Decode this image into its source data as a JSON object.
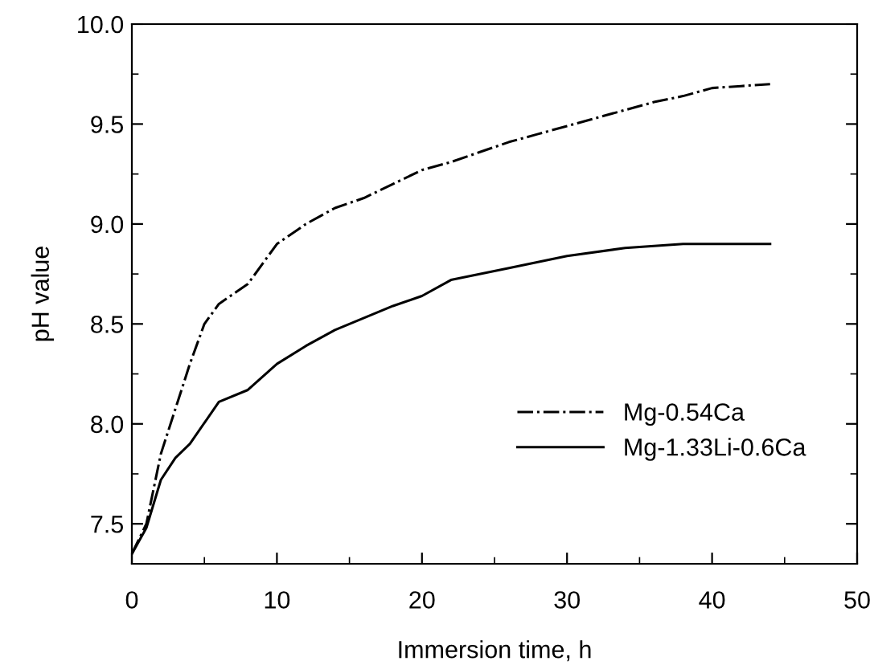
{
  "chart_data": {
    "type": "line",
    "xlabel": "Immersion time, h",
    "ylabel": "pH value",
    "xlim": [
      0,
      50
    ],
    "xticks": [
      0,
      10,
      20,
      30,
      40,
      50
    ],
    "ylim": [
      7.3,
      10.0
    ],
    "yticks": [
      {
        "value": 7.5,
        "label": "7.5"
      },
      {
        "value": 8.0,
        "label": "8.0"
      },
      {
        "value": 8.5,
        "label": "8.5"
      },
      {
        "value": 9.0,
        "label": "9.0"
      },
      {
        "value": 9.5,
        "label": "9.5"
      },
      {
        "value": 10.0,
        "label": "10.0"
      }
    ],
    "grid": false,
    "legend": "bottom right",
    "marker": "none",
    "series": [
      {
        "name": "Mg-0.54Ca",
        "color": "#000000",
        "line_style": "dashdot",
        "x": [
          0,
          1,
          2,
          4,
          5,
          6,
          8,
          10,
          12,
          14,
          16,
          18,
          20,
          22,
          24,
          26,
          28,
          30,
          32,
          34,
          36,
          38,
          40,
          42,
          44
        ],
        "values": [
          7.35,
          7.5,
          7.85,
          8.3,
          8.5,
          8.6,
          8.7,
          8.9,
          9.0,
          9.08,
          9.13,
          9.2,
          9.27,
          9.31,
          9.36,
          9.41,
          9.45,
          9.49,
          9.53,
          9.57,
          9.61,
          9.64,
          9.68,
          9.69,
          9.7
        ]
      },
      {
        "name": "Mg-1.33Li-0.6Ca",
        "color": "#000000",
        "line_style": "solid",
        "x": [
          0,
          1,
          2,
          3,
          4,
          6,
          8,
          10,
          12,
          14,
          16,
          18,
          20,
          22,
          26,
          30,
          34,
          38,
          44
        ],
        "values": [
          7.35,
          7.48,
          7.72,
          7.83,
          7.9,
          8.11,
          8.17,
          8.3,
          8.39,
          8.47,
          8.53,
          8.59,
          8.64,
          8.72,
          8.78,
          8.84,
          8.88,
          8.9,
          8.9
        ]
      }
    ]
  }
}
